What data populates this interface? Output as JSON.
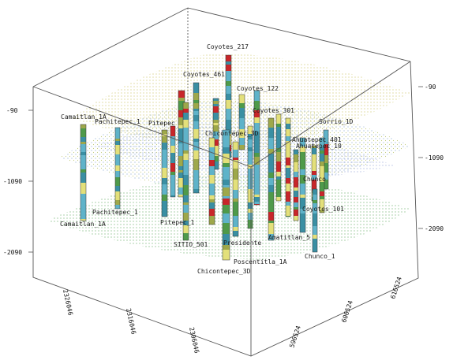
{
  "z_axis": {
    "left": [
      "-90",
      "-1090",
      "-2090"
    ],
    "right": [
      "-90",
      "-1090",
      "-2090"
    ]
  },
  "x_axis": {
    "labels": [
      "2326046",
      "2316046",
      "2306046"
    ]
  },
  "y_axis": {
    "labels": [
      "596524",
      "606524",
      "616524"
    ]
  },
  "wells": [
    "Coyotes_217",
    "Coyotes_461",
    "Coyotes_122",
    "Camaitlan_1A",
    "Pachitepec_1",
    "Pitepec",
    "Sorrio_1D",
    "Ahuatepec_401",
    "Chunco",
    "Chunco_1",
    "Coyotes_101",
    "Camaitlan_1A",
    "Pachitepec_1",
    "Pitepec_1",
    "SITIO_501",
    "Presidente",
    "Coyotes_301",
    "Chicontepec_3D",
    "Poscentitla_1A",
    "Amatitlan_5",
    "Chicontepec_3D",
    "Ahuatepec_10"
  ],
  "colors": {
    "cyan": "#5fb3c9",
    "teal": "#3a8fa3",
    "yellow": "#e3e07a",
    "olive": "#9ea84a",
    "red": "#c8262a",
    "green": "#4f9a4a"
  }
}
